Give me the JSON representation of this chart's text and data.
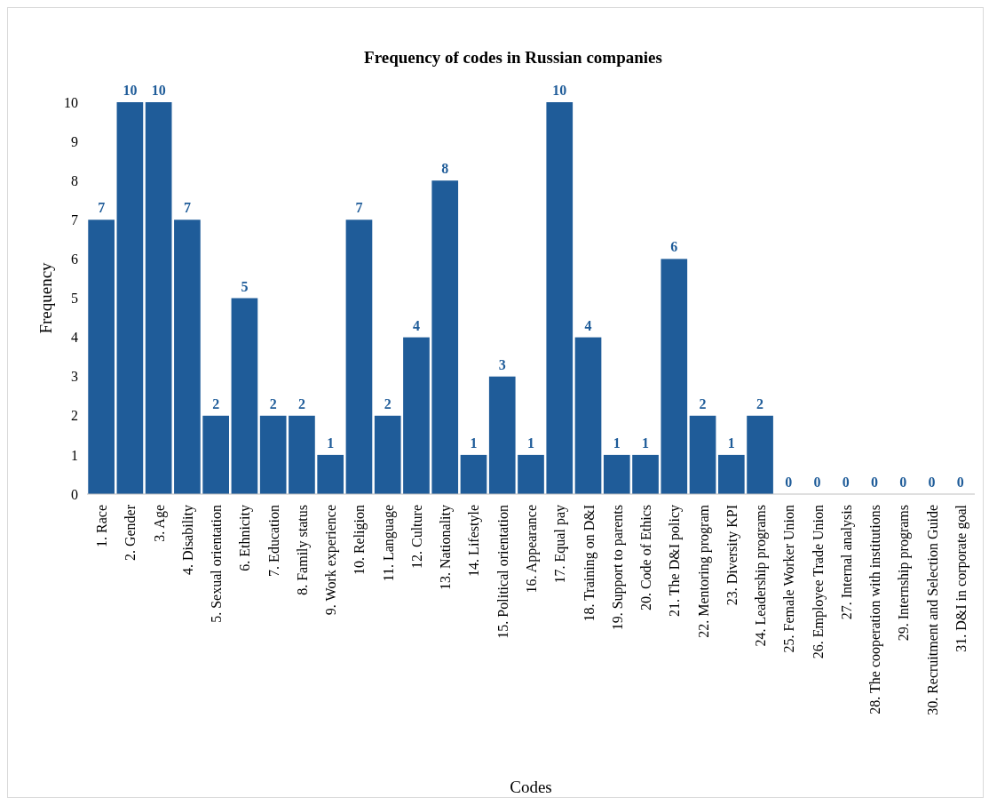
{
  "chart_data": {
    "type": "bar",
    "title": "Frequency of codes in Russian companies",
    "xlabel": "Codes",
    "ylabel": "Frequency",
    "categories": [
      "1. Race",
      "2. Gender",
      "3. Age",
      "4. Disability",
      "5. Sexual orientation",
      "6. Ethnicity",
      "7. Education",
      "8. Family status",
      "9. Work experience",
      "10. Religion",
      "11. Language",
      "12. Culture",
      "13. Nationality",
      "14. Lifestyle",
      "15. Political orientation",
      "16. Appearance",
      "17. Equal pay",
      "18. Training on D&I",
      "19. Support to parents",
      "20. Code of Ethics",
      "21. The D&I policy",
      "22. Mentoring program",
      "23. Diversity KPI",
      "24. Leadership programs",
      "25. Female Worker Union",
      "26. Employee Trade Union",
      "27. Internal analysis",
      "28. The cooperation with institutions",
      "29. Internship programs",
      "30. Recruitment and Selection Guide",
      "31. D&I in corporate goal"
    ],
    "values": [
      7,
      10,
      10,
      7,
      2,
      5,
      2,
      2,
      1,
      7,
      2,
      4,
      8,
      1,
      3,
      1,
      10,
      4,
      1,
      1,
      6,
      2,
      1,
      2,
      0,
      0,
      0,
      0,
      0,
      0,
      0
    ],
    "color": "#1f5c99",
    "ylim": [
      0,
      10
    ],
    "yticks": [
      0,
      1,
      2,
      3,
      4,
      5,
      6,
      7,
      8,
      9,
      10
    ],
    "grid": false,
    "data_labels": true
  }
}
